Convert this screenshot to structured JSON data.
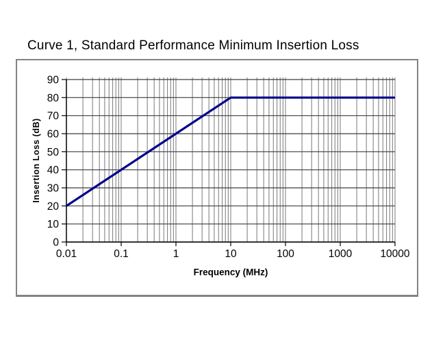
{
  "chart_data": {
    "type": "line",
    "title": "Curve 1, Standard Performance Minimum Insertion Loss",
    "xlabel": "Frequency (MHz)",
    "ylabel": "Insertion Loss (dB)",
    "x_scale": "log",
    "xlim": [
      0.01,
      10000
    ],
    "ylim": [
      0,
      90
    ],
    "x_ticks": [
      0.01,
      0.1,
      1,
      10,
      100,
      1000,
      10000
    ],
    "x_tick_labels": [
      "0.01",
      "0.1",
      "1",
      "10",
      "100",
      "1000",
      "10000"
    ],
    "y_ticks": [
      0,
      10,
      20,
      30,
      40,
      50,
      60,
      70,
      80,
      90
    ],
    "grid": "major+minor vertical (log), major horizontal, on",
    "legend_position": "none",
    "series": [
      {
        "name": "Curve 1 minimum insertion loss",
        "x": [
          0.01,
          10,
          10000
        ],
        "y": [
          20,
          80,
          80
        ]
      }
    ],
    "annotations": [],
    "colors": {
      "line": "#00008B",
      "grid_vertical": "#787878",
      "grid_horizontal": "#3c3c3c",
      "axis": "#000000",
      "box_border": "#828282",
      "background": "#ffffff",
      "text": "#000000"
    }
  }
}
